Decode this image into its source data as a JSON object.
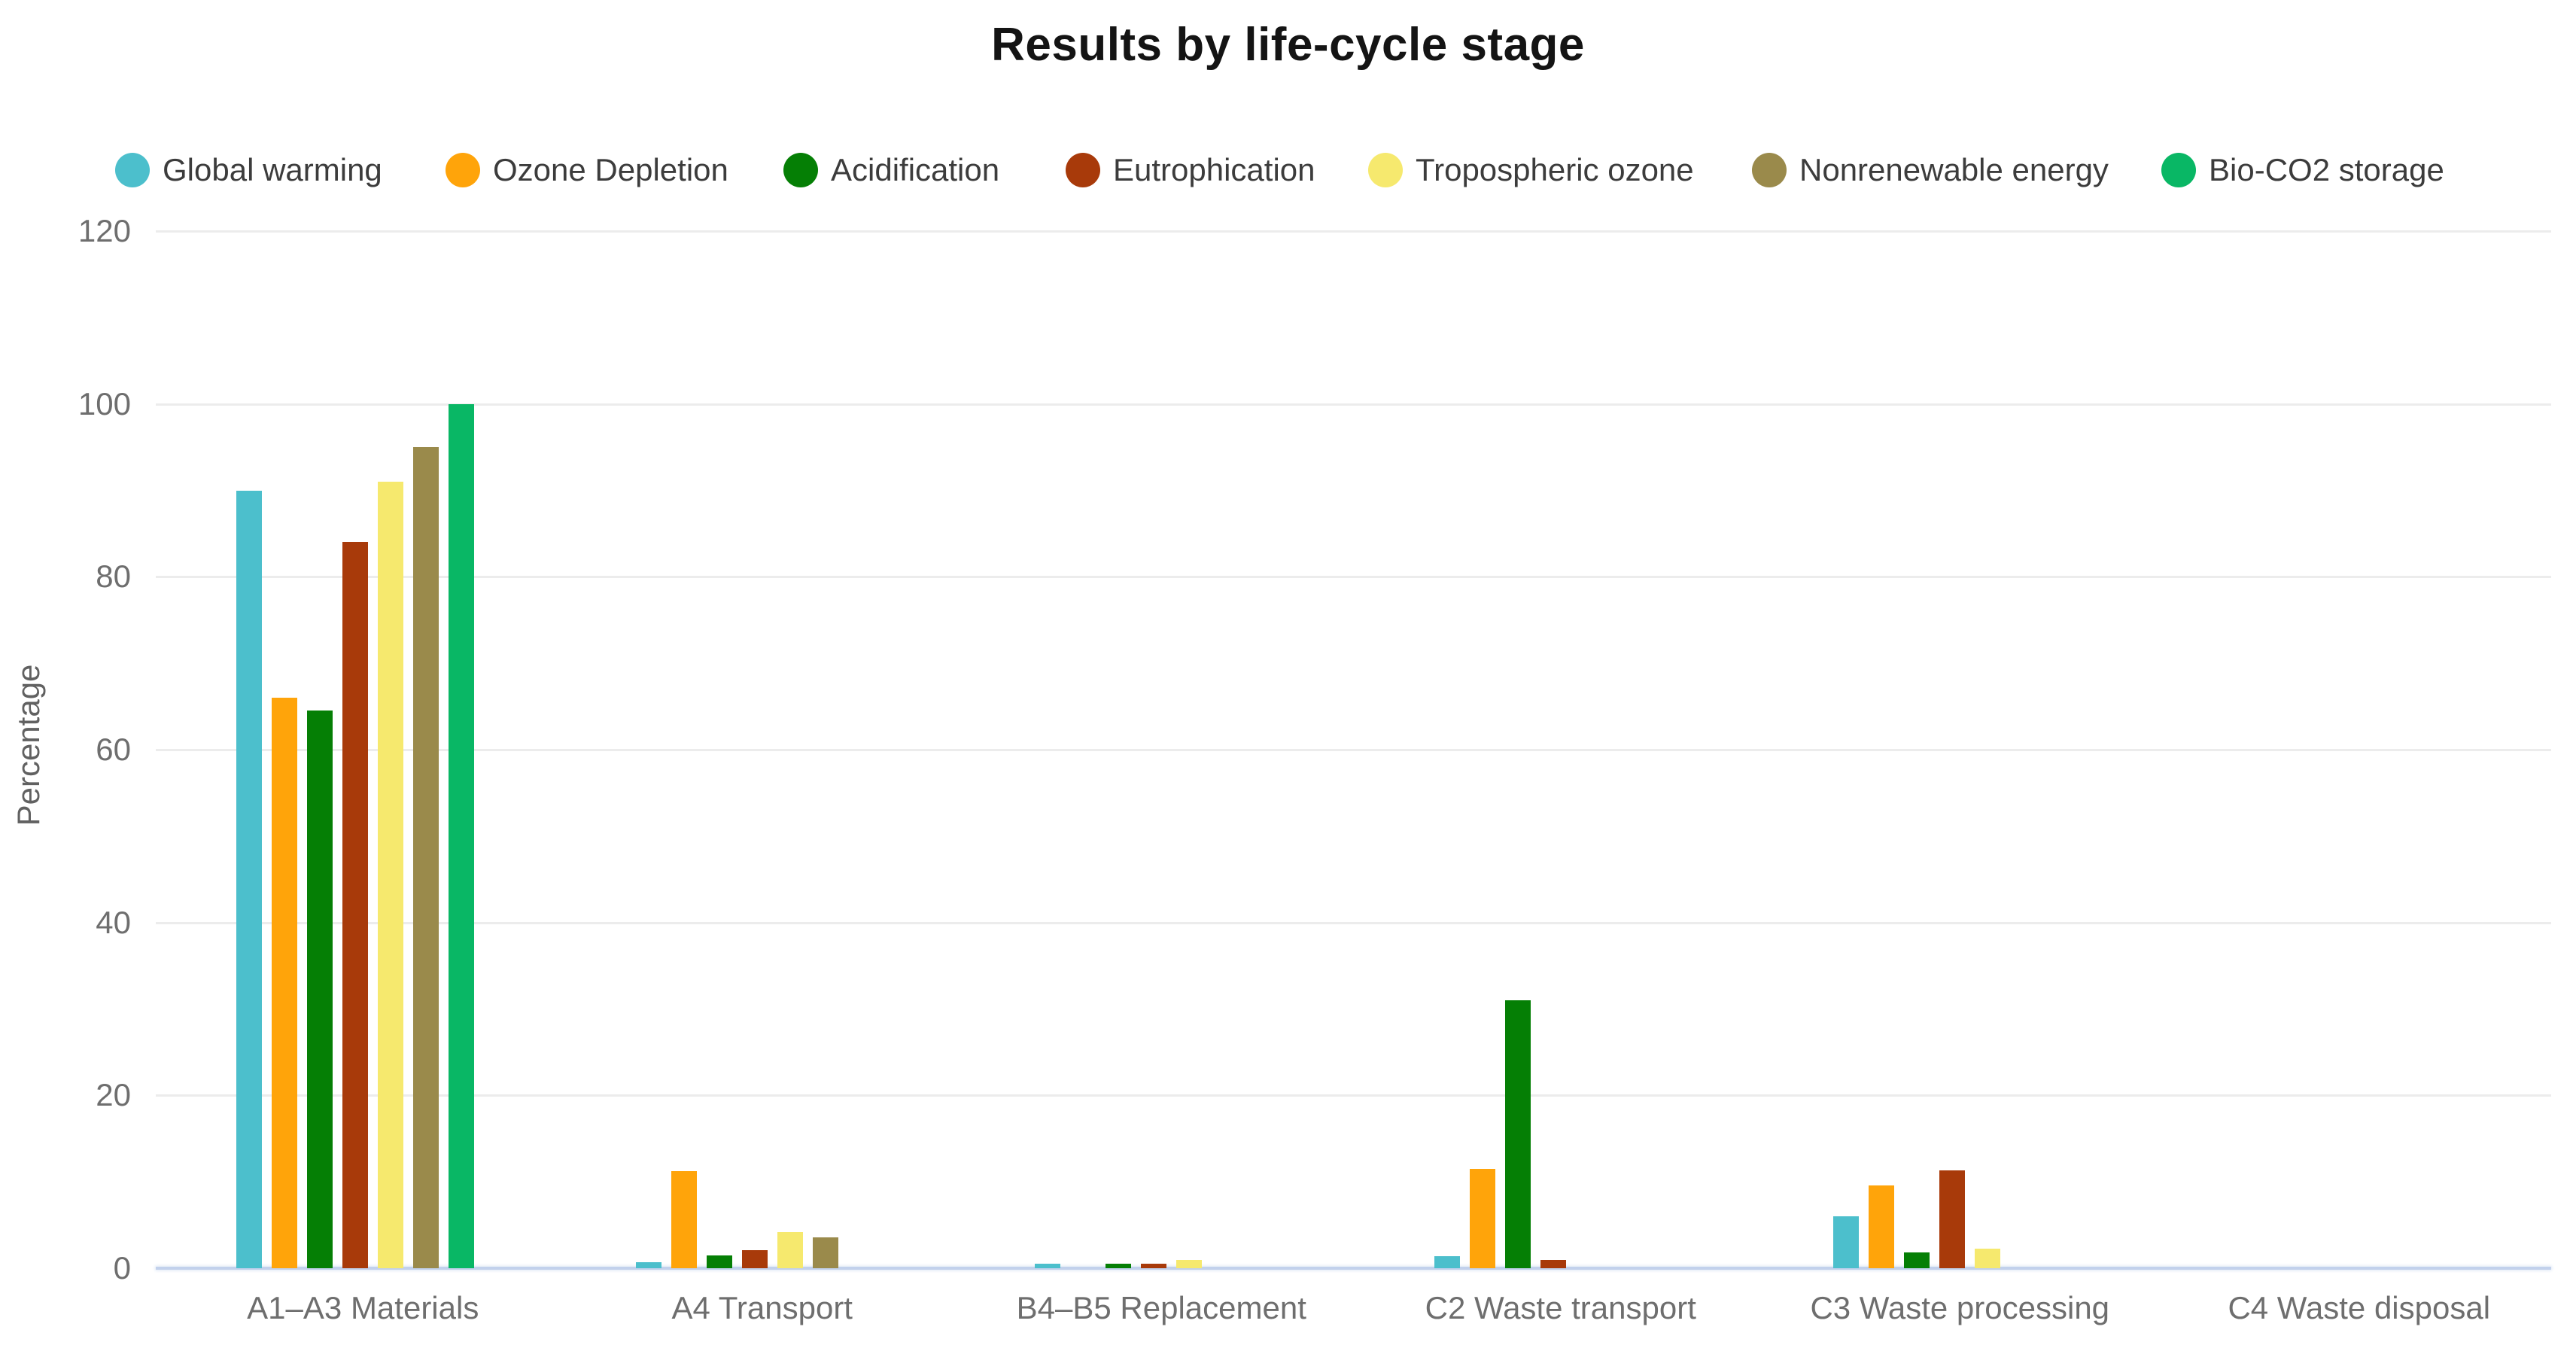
{
  "chart_data": {
    "type": "bar",
    "title": "Results by life-cycle stage",
    "xlabel": "",
    "ylabel": "Percentage",
    "ylim": [
      0,
      120
    ],
    "yticks": [
      0,
      20,
      40,
      60,
      80,
      100,
      120
    ],
    "grid": true,
    "legend_position": "top",
    "categories": [
      "A1–A3 Materials",
      "A4 Transport",
      "B4–B5 Replacement",
      "C2 Waste transport",
      "C3 Waste processing",
      "C4 Waste disposal"
    ],
    "series": [
      {
        "name": "Global warming",
        "color": "#4CBFCC",
        "values": [
          90,
          0.7,
          0.5,
          1.4,
          6,
          0
        ]
      },
      {
        "name": "Ozone Depletion",
        "color": "#FFA40A",
        "values": [
          66,
          11.2,
          0,
          11.5,
          9.6,
          0
        ]
      },
      {
        "name": "Acidification",
        "color": "#057F05",
        "values": [
          64.5,
          1.5,
          0.5,
          31,
          1.8,
          0
        ]
      },
      {
        "name": "Eutrophication",
        "color": "#A83A0A",
        "values": [
          84,
          2.1,
          0.5,
          1,
          11.3,
          0
        ]
      },
      {
        "name": "Tropospheric ozone",
        "color": "#F6E96E",
        "values": [
          91,
          4.2,
          1,
          0,
          2.3,
          0
        ]
      },
      {
        "name": "Nonrenewable energy",
        "color": "#9A8A4B",
        "values": [
          95,
          3.6,
          0,
          0,
          0,
          0
        ]
      },
      {
        "name": "Bio-CO2 storage",
        "color": "#09B765",
        "values": [
          100,
          0,
          0,
          0,
          0,
          0
        ]
      }
    ]
  }
}
